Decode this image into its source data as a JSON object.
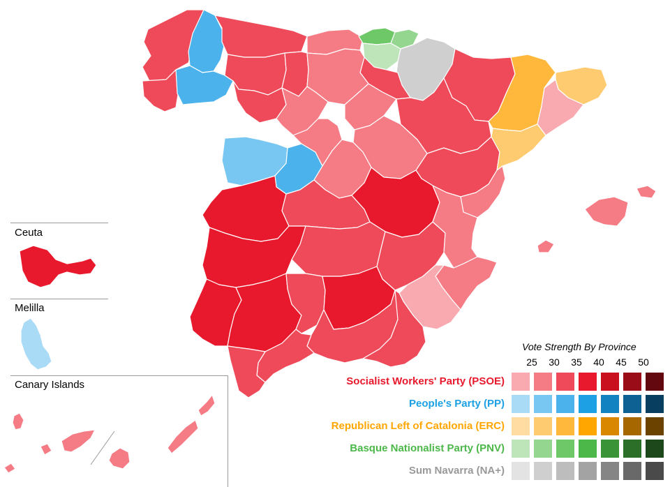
{
  "insets": {
    "ceuta": "Ceuta",
    "melilla": "Melilla",
    "canary": "Canary Islands"
  },
  "legend": {
    "title": "Vote Strength By Province",
    "scale": [
      "25",
      "30",
      "35",
      "40",
      "45",
      "50"
    ],
    "parties": [
      {
        "name": "Socialist Workers' Party (PSOE)",
        "color": "#e8192c",
        "shades": [
          "#f9aab0",
          "#f57b85",
          "#ef4a5a",
          "#e8192c",
          "#c8101f",
          "#9a0c17",
          "#640810"
        ]
      },
      {
        "name": "People's Party (PP)",
        "color": "#1da1e4",
        "shades": [
          "#a9daf6",
          "#78c6f2",
          "#4cb2ec",
          "#1da1e4",
          "#1282c1",
          "#0d6193",
          "#083f60"
        ]
      },
      {
        "name": "Republican Left of Catalonia (ERC)",
        "color": "#ffa600",
        "shades": [
          "#ffdda2",
          "#ffcb70",
          "#ffb73c",
          "#ffa600",
          "#d98700",
          "#a66600",
          "#6b4200"
        ]
      },
      {
        "name": "Basque Nationalist Party (PNV)",
        "color": "#4cb849",
        "shades": [
          "#bde5b9",
          "#94d68f",
          "#6ec867",
          "#4cb849",
          "#3a9437",
          "#2b6f29",
          "#1c481b"
        ]
      },
      {
        "name": "Sum Navarra (NA+)",
        "color": "#999999",
        "shades": [
          "#e3e3e3",
          "#cfcfcf",
          "#bdbdbd",
          "#a3a3a3",
          "#858585",
          "#696969",
          "#4a4a4a"
        ]
      }
    ]
  }
}
